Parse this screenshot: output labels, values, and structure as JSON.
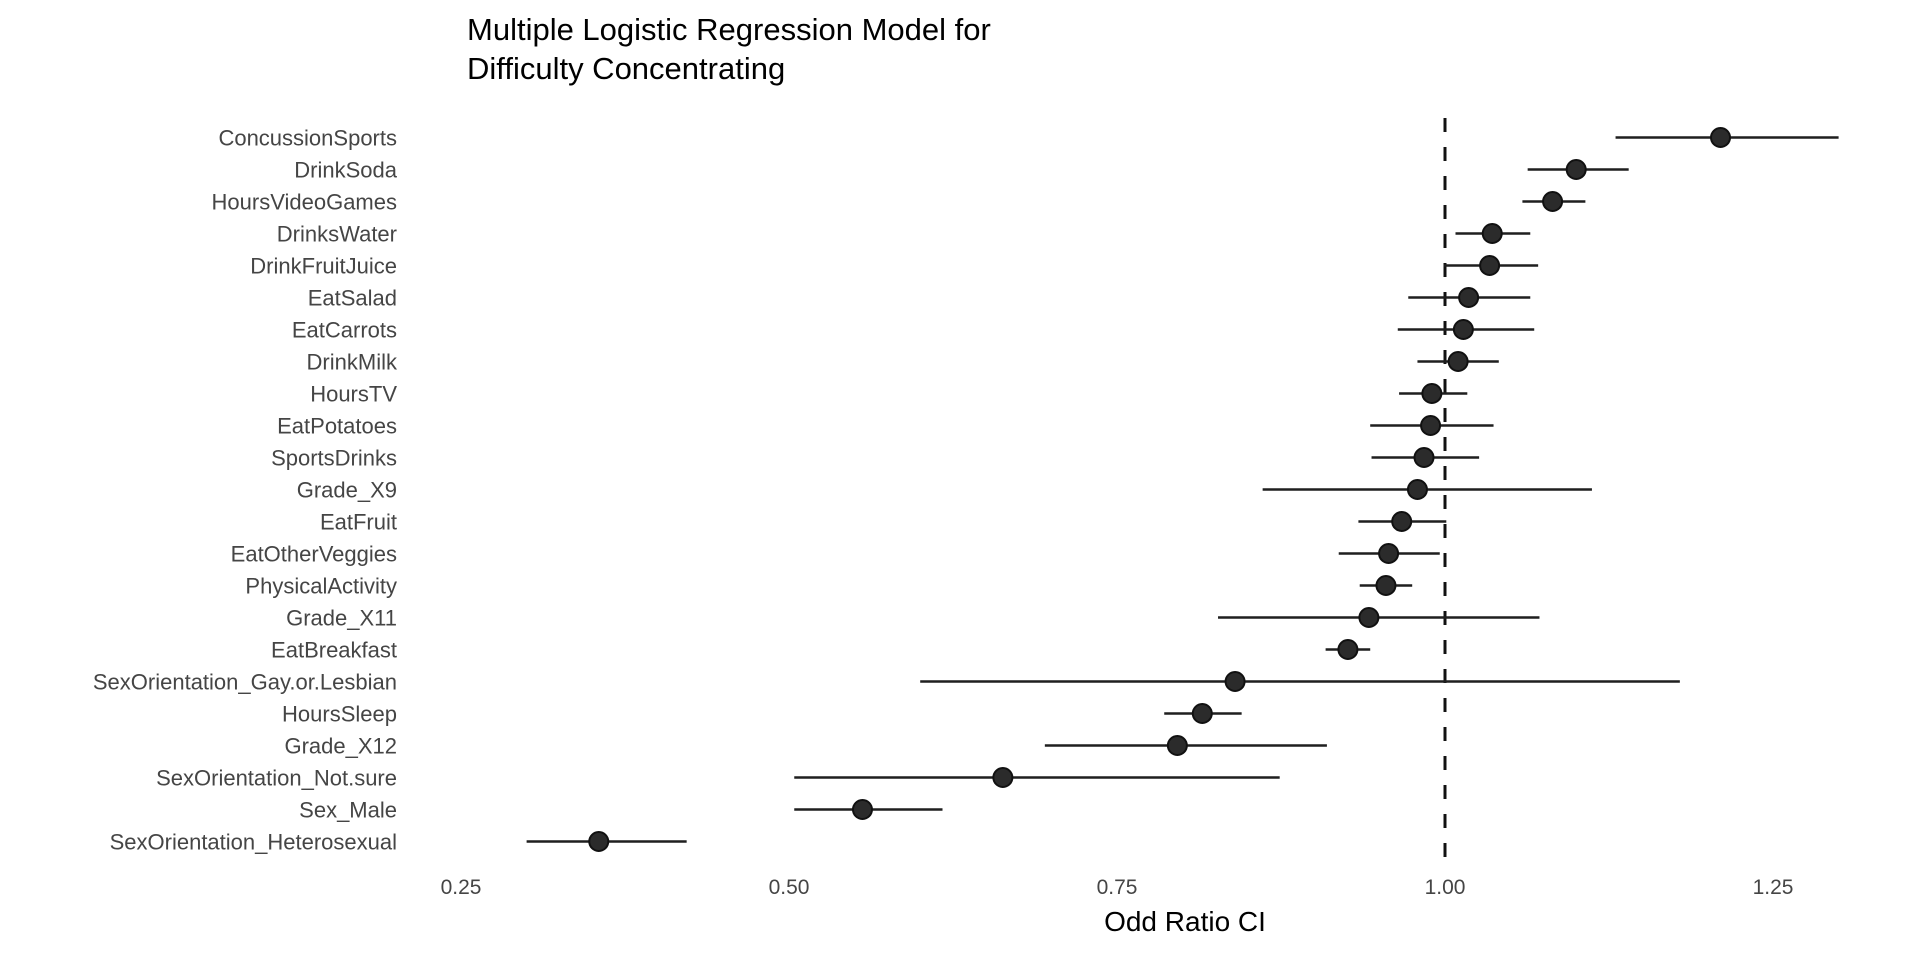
{
  "chart_data": {
    "type": "scatter",
    "subtype": "forest-plot-odds-ratio-ci",
    "title": "Multiple Logistic Regression Model for\nDifficulty Concentrating",
    "xlabel": "Odd Ratio CI",
    "ylabel": "",
    "xlim": [
      0.22,
      1.35
    ],
    "x_ticks": [
      0.25,
      0.5,
      0.75,
      1.0,
      1.25
    ],
    "x_tick_labels": [
      "0.25",
      "0.50",
      "0.75",
      "1.00",
      "1.25"
    ],
    "reference_line": 1.0,
    "reference_line_style": "dashed",
    "grid": false,
    "legend": false,
    "rows": [
      {
        "label": "ConcussionSports",
        "estimate": 1.21,
        "ci_low": 1.13,
        "ci_high": 1.3
      },
      {
        "label": "DrinkSoda",
        "estimate": 1.1,
        "ci_low": 1.063,
        "ci_high": 1.14
      },
      {
        "label": "HoursVideoGames",
        "estimate": 1.082,
        "ci_low": 1.059,
        "ci_high": 1.107
      },
      {
        "label": "DrinksWater",
        "estimate": 1.036,
        "ci_low": 1.008,
        "ci_high": 1.065
      },
      {
        "label": "DrinkFruitJuice",
        "estimate": 1.034,
        "ci_low": 0.999,
        "ci_high": 1.071
      },
      {
        "label": "EatSalad",
        "estimate": 1.018,
        "ci_low": 0.972,
        "ci_high": 1.065
      },
      {
        "label": "EatCarrots",
        "estimate": 1.014,
        "ci_low": 0.964,
        "ci_high": 1.068
      },
      {
        "label": "DrinkMilk",
        "estimate": 1.01,
        "ci_low": 0.979,
        "ci_high": 1.041
      },
      {
        "label": "HoursTV",
        "estimate": 0.99,
        "ci_low": 0.965,
        "ci_high": 1.017
      },
      {
        "label": "EatPotatoes",
        "estimate": 0.989,
        "ci_low": 0.943,
        "ci_high": 1.037
      },
      {
        "label": "SportsDrinks",
        "estimate": 0.984,
        "ci_low": 0.944,
        "ci_high": 1.026
      },
      {
        "label": "Grade_X9",
        "estimate": 0.979,
        "ci_low": 0.861,
        "ci_high": 1.112
      },
      {
        "label": "EatFruit",
        "estimate": 0.967,
        "ci_low": 0.934,
        "ci_high": 1.001
      },
      {
        "label": "EatOtherVeggies",
        "estimate": 0.957,
        "ci_low": 0.919,
        "ci_high": 0.996
      },
      {
        "label": "PhysicalActivity",
        "estimate": 0.955,
        "ci_low": 0.935,
        "ci_high": 0.975
      },
      {
        "label": "Grade_X11",
        "estimate": 0.942,
        "ci_low": 0.827,
        "ci_high": 1.072
      },
      {
        "label": "EatBreakfast",
        "estimate": 0.926,
        "ci_low": 0.909,
        "ci_high": 0.943
      },
      {
        "label": "SexOrientation_Gay.or.Lesbian",
        "estimate": 0.84,
        "ci_low": 0.6,
        "ci_high": 1.179
      },
      {
        "label": "HoursSleep",
        "estimate": 0.815,
        "ci_low": 0.786,
        "ci_high": 0.845
      },
      {
        "label": "Grade_X12",
        "estimate": 0.796,
        "ci_low": 0.695,
        "ci_high": 0.91
      },
      {
        "label": "SexOrientation_Not.sure",
        "estimate": 0.663,
        "ci_low": 0.504,
        "ci_high": 0.874
      },
      {
        "label": "Sex_Male",
        "estimate": 0.556,
        "ci_low": 0.504,
        "ci_high": 0.617
      },
      {
        "label": "SexOrientation_Heterosexual",
        "estimate": 0.355,
        "ci_low": 0.3,
        "ci_high": 0.422
      }
    ],
    "colors": {
      "point_fill": "#2b2b2b",
      "point_outline": "#111111",
      "ci_line": "#1f1f1f",
      "reference_line": "#111111",
      "axis_text": "#454545",
      "title_text": "#000000",
      "background": "#ffffff"
    }
  }
}
